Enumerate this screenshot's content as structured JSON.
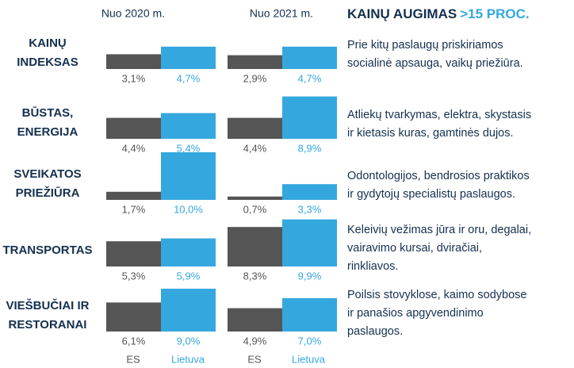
{
  "columns": [
    "Nuo 2020 m.",
    "Nuo 2021 m."
  ],
  "title": "KAINŲ AUGIMAS",
  "title_highlight": ">15 PROC.",
  "legend": [
    "ES",
    "Lietuva"
  ],
  "colors": [
    "#555555",
    "#35a7df"
  ],
  "ylim": [
    0,
    10
  ],
  "rows": [
    {
      "label": [
        "KAINŲ",
        "INDEKSAS"
      ],
      "values": [
        [
          3.1,
          4.7
        ],
        [
          2.9,
          4.7
        ]
      ],
      "value_labels": [
        [
          "3,1%",
          "4,7%"
        ],
        [
          "2,9%",
          "4,7%"
        ]
      ],
      "note": [
        "Prie kitų paslaugų priskiriamos",
        "socialinė apsauga, vaikų priežiūra."
      ]
    },
    {
      "label": [
        "BŪSTAS,",
        "ENERGIJA"
      ],
      "values": [
        [
          4.4,
          5.4
        ],
        [
          4.4,
          8.9
        ]
      ],
      "value_labels": [
        [
          "4,4%",
          "5,4%"
        ],
        [
          "4,4%",
          "8,9%"
        ]
      ],
      "note": [
        "Atliekų tvarkymas, elektra, skystasis",
        "ir kietasis kuras, gamtinės dujos."
      ]
    },
    {
      "label": [
        "SVEIKATOS",
        "PRIEŽIŪRA"
      ],
      "values": [
        [
          1.7,
          10.0
        ],
        [
          0.7,
          3.3
        ]
      ],
      "value_labels": [
        [
          "1,7%",
          "10,0%"
        ],
        [
          "0,7%",
          "3,3%"
        ]
      ],
      "note": [
        "Odontologijos, bendrosios praktikos",
        "ir gydytojų specialistų paslaugos."
      ]
    },
    {
      "label": [
        "TRANSPORTAS"
      ],
      "values": [
        [
          5.3,
          5.9
        ],
        [
          8.3,
          9.9
        ]
      ],
      "value_labels": [
        [
          "5,3%",
          "5,9%"
        ],
        [
          "8,3%",
          "9,9%"
        ]
      ],
      "note": [
        "Keleivių vežimas jūra ir oru, degalai,",
        "vairavimo kursai, dviračiai,",
        "rinkliavos."
      ]
    },
    {
      "label": [
        "VIEŠBUČIAI IR",
        "RESTORANAI"
      ],
      "values": [
        [
          6.1,
          9.0
        ],
        [
          4.9,
          7.0
        ]
      ],
      "value_labels": [
        [
          "6,1%",
          "9,0%"
        ],
        [
          "4,9%",
          "7,0%"
        ]
      ],
      "note": [
        "Poilsis stovyklose, kaimo sodybose",
        "ir panašios apgyvendinimo",
        "paslaugos."
      ]
    }
  ]
}
